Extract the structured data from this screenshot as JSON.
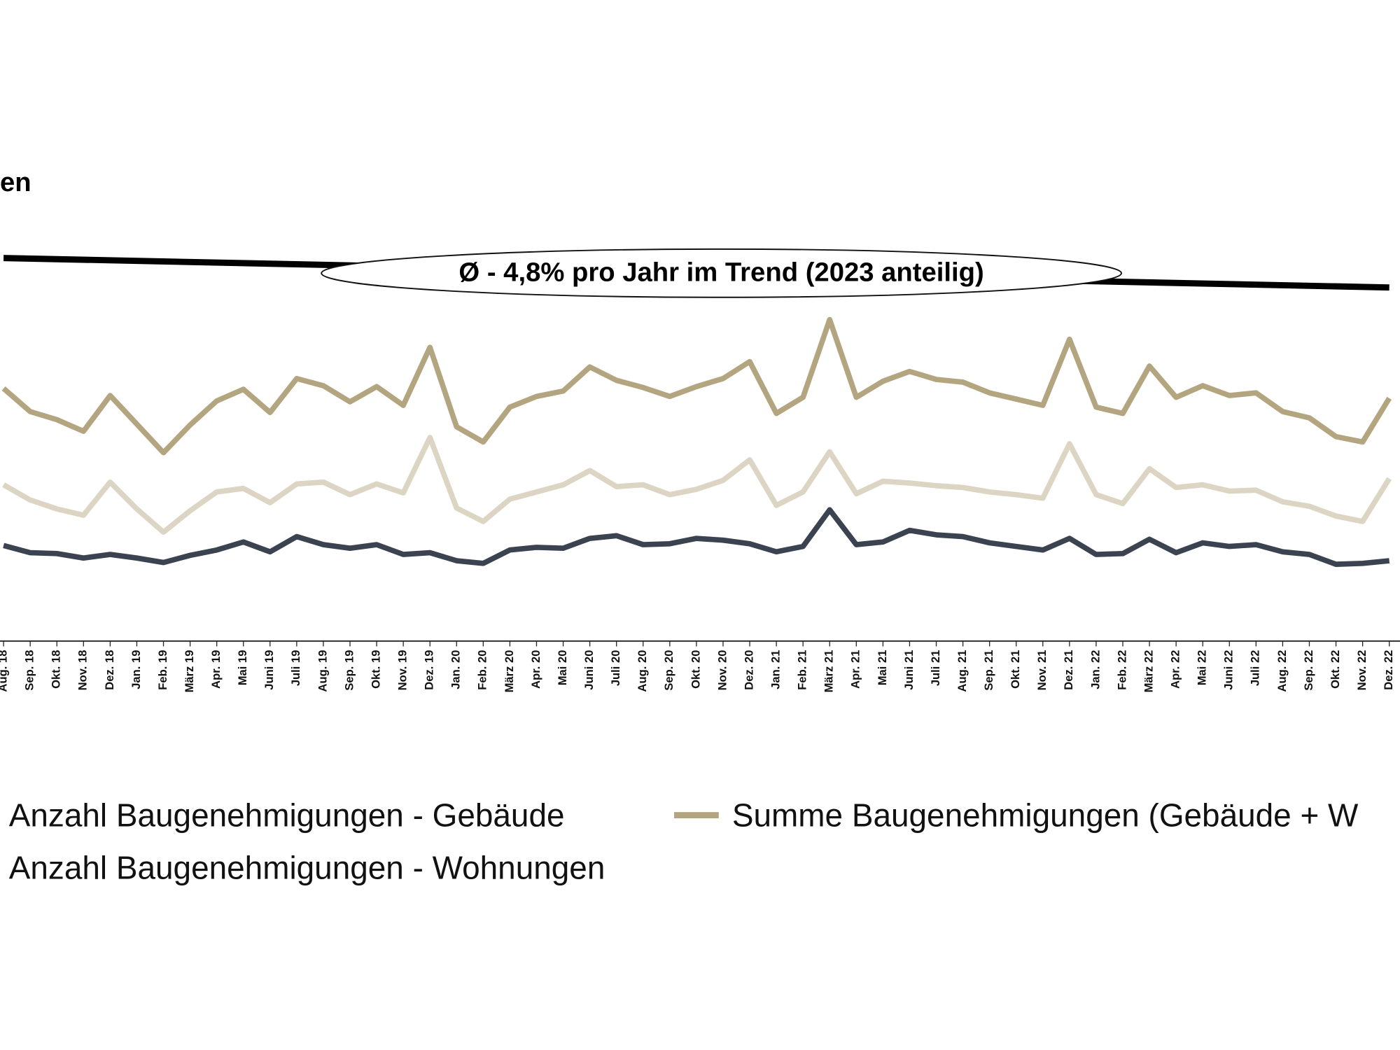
{
  "chart_data": {
    "type": "line",
    "title": "en",
    "annotation": "Ø - 4,8% pro Jahr im Trend (2023 anteilig)",
    "categories": [
      "Aug. 18",
      "Sep. 18",
      "Okt. 18",
      "Nov. 18",
      "Dez. 18",
      "Jan. 19",
      "Feb. 19",
      "März 19",
      "Apr. 19",
      "Mai 19",
      "Juni 19",
      "Juli 19",
      "Aug. 19",
      "Sep. 19",
      "Okt. 19",
      "Nov. 19",
      "Dez. 19",
      "Jan. 20",
      "Feb. 20",
      "März 20",
      "Apr. 20",
      "Mai 20",
      "Juni 20",
      "Juli 20",
      "Aug. 20",
      "Sep. 20",
      "Okt. 20",
      "Nov. 20",
      "Dez. 20",
      "Jan. 21",
      "Feb. 21",
      "März 21",
      "Apr. 21",
      "Mai 21",
      "Juni 21",
      "Juli 21",
      "Aug. 21",
      "Sep. 21",
      "Okt. 21",
      "Nov. 21",
      "Dez. 21",
      "Jan. 22",
      "Feb. 22",
      "März 22",
      "Apr. 22",
      "Mai 22",
      "Juni 22",
      "Juli 22",
      "Aug. 22",
      "Sep. 22",
      "Okt. 22",
      "Nov. 22",
      "Dez. 22"
    ],
    "series": [
      {
        "name": "Anzahl Baugenehmigungen - Gebäude",
        "color": "#3b4350",
        "values": [
          107,
          99,
          98,
          93,
          97,
          93,
          88,
          96,
          102,
          111,
          100,
          117,
          108,
          104,
          108,
          97,
          99,
          90,
          87,
          102,
          105,
          104,
          115,
          118,
          108,
          109,
          115,
          113,
          109,
          100,
          106,
          147,
          108,
          111,
          124,
          119,
          117,
          110,
          106,
          102,
          115,
          97,
          98,
          114,
          99,
          110,
          106,
          108,
          100,
          97,
          86,
          87,
          90
        ]
      },
      {
        "name": "Anzahl Baugenehmigungen - Wohnungen",
        "color": "#ddd5c4",
        "values": [
          175,
          158,
          148,
          141,
          178,
          148,
          122,
          146,
          167,
          171,
          155,
          176,
          178,
          164,
          176,
          166,
          228,
          149,
          134,
          159,
          167,
          175,
          191,
          173,
          175,
          164,
          170,
          180,
          203,
          152,
          167,
          212,
          165,
          179,
          177,
          174,
          172,
          167,
          164,
          160,
          221,
          164,
          154,
          193,
          172,
          175,
          168,
          169,
          156,
          151,
          140,
          134,
          182
        ]
      },
      {
        "name": "Summe Baugenehmigungen (Gebäude + W",
        "color": "#b3a57f",
        "values": [
          283,
          257,
          248,
          235,
          275,
          243,
          211,
          242,
          269,
          282,
          256,
          294,
          286,
          268,
          285,
          264,
          329,
          240,
          223,
          262,
          274,
          280,
          307,
          292,
          284,
          274,
          285,
          294,
          313,
          255,
          273,
          360,
          273,
          291,
          302,
          293,
          290,
          278,
          271,
          264,
          338,
          262,
          255,
          308,
          273,
          286,
          275,
          278,
          257,
          250,
          229,
          223,
          272
        ]
      }
    ],
    "trend": {
      "color": "#000000",
      "values": [
        429,
        396
      ]
    },
    "ylim": [
      0,
      400
    ]
  }
}
